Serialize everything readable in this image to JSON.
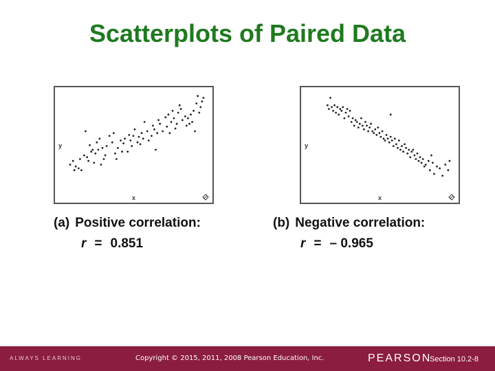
{
  "slide": {
    "title": "Scatterplots of Paired Data"
  },
  "footer": {
    "left_text": "ALWAYS LEARNING",
    "copyright": "Copyright © 2015, 2011, 2008 Pearson Education, Inc.",
    "brand": "PEARSON",
    "section": "Section 10.2-8"
  },
  "chart_data": [
    {
      "type": "scatter",
      "title": "",
      "xlabel": "x",
      "ylabel": "y",
      "xlim": [
        0,
        100
      ],
      "ylim": [
        0,
        100
      ],
      "grid": false,
      "caption_tag": "(a)",
      "caption_text": "Positive correlation:",
      "r_label": "r",
      "r_equals": "=",
      "r_value": "0.851",
      "points": [
        [
          2,
          24
        ],
        [
          4,
          28
        ],
        [
          5,
          18
        ],
        [
          6,
          22
        ],
        [
          8,
          20
        ],
        [
          9,
          30
        ],
        [
          10,
          18
        ],
        [
          12,
          34
        ],
        [
          14,
          32
        ],
        [
          16,
          45
        ],
        [
          13,
          60
        ],
        [
          18,
          40
        ],
        [
          20,
          36
        ],
        [
          21,
          48
        ],
        [
          23,
          52
        ],
        [
          26,
          30
        ],
        [
          28,
          44
        ],
        [
          30,
          55
        ],
        [
          32,
          48
        ],
        [
          33,
          58
        ],
        [
          35,
          30
        ],
        [
          36,
          42
        ],
        [
          38,
          50
        ],
        [
          40,
          47
        ],
        [
          41,
          52
        ],
        [
          43,
          38
        ],
        [
          44,
          56
        ],
        [
          45,
          50
        ],
        [
          47,
          55
        ],
        [
          48,
          62
        ],
        [
          50,
          48
        ],
        [
          51,
          54
        ],
        [
          53,
          58
        ],
        [
          54,
          52
        ],
        [
          55,
          70
        ],
        [
          57,
          60
        ],
        [
          58,
          50
        ],
        [
          60,
          55
        ],
        [
          61,
          66
        ],
        [
          62,
          62
        ],
        [
          64,
          58
        ],
        [
          65,
          72
        ],
        [
          66,
          68
        ],
        [
          68,
          60
        ],
        [
          70,
          75
        ],
        [
          71,
          65
        ],
        [
          72,
          78
        ],
        [
          74,
          70
        ],
        [
          75,
          82
        ],
        [
          76,
          74
        ],
        [
          78,
          68
        ],
        [
          79,
          80
        ],
        [
          80,
          88
        ],
        [
          81,
          84
        ],
        [
          82,
          72
        ],
        [
          84,
          76
        ],
        [
          85,
          66
        ],
        [
          86,
          74
        ],
        [
          88,
          78
        ],
        [
          90,
          82
        ],
        [
          92,
          90
        ],
        [
          94,
          80
        ],
        [
          95,
          86
        ],
        [
          96,
          92
        ],
        [
          93,
          98
        ],
        [
          97,
          96
        ],
        [
          89,
          70
        ],
        [
          91,
          60
        ],
        [
          87,
          68
        ],
        [
          73,
          58
        ],
        [
          77,
          63
        ],
        [
          63,
          40
        ],
        [
          52,
          46
        ],
        [
          46,
          44
        ],
        [
          39,
          38
        ],
        [
          34,
          36
        ],
        [
          27,
          34
        ],
        [
          25,
          42
        ],
        [
          22,
          40
        ],
        [
          19,
          26
        ],
        [
          17,
          38
        ],
        [
          24,
          24
        ],
        [
          15,
          28
        ]
      ]
    },
    {
      "type": "scatter",
      "title": "",
      "xlabel": "x",
      "ylabel": "y",
      "xlim": [
        0,
        100
      ],
      "ylim": [
        0,
        100
      ],
      "grid": false,
      "caption_tag": "(b)",
      "caption_text": "Negative correlation:",
      "r_label": "r",
      "r_equals": "=",
      "r_value": "– 0.965",
      "points": [
        [
          12,
          96
        ],
        [
          10,
          88
        ],
        [
          11,
          84
        ],
        [
          13,
          86
        ],
        [
          14,
          82
        ],
        [
          15,
          88
        ],
        [
          16,
          80
        ],
        [
          17,
          86
        ],
        [
          18,
          78
        ],
        [
          19,
          84
        ],
        [
          20,
          82
        ],
        [
          21,
          86
        ],
        [
          22,
          74
        ],
        [
          23,
          80
        ],
        [
          24,
          84
        ],
        [
          25,
          76
        ],
        [
          26,
          82
        ],
        [
          27,
          70
        ],
        [
          28,
          74
        ],
        [
          29,
          66
        ],
        [
          30,
          72
        ],
        [
          31,
          70
        ],
        [
          32,
          64
        ],
        [
          33,
          68
        ],
        [
          34,
          74
        ],
        [
          35,
          66
        ],
        [
          36,
          62
        ],
        [
          37,
          70
        ],
        [
          38,
          66
        ],
        [
          39,
          60
        ],
        [
          40,
          64
        ],
        [
          41,
          68
        ],
        [
          42,
          60
        ],
        [
          43,
          58
        ],
        [
          44,
          62
        ],
        [
          45,
          56
        ],
        [
          46,
          64
        ],
        [
          47,
          58
        ],
        [
          48,
          54
        ],
        [
          49,
          60
        ],
        [
          50,
          52
        ],
        [
          51,
          50
        ],
        [
          52,
          56
        ],
        [
          53,
          52
        ],
        [
          54,
          48
        ],
        [
          55,
          54
        ],
        [
          56,
          50
        ],
        [
          57,
          44
        ],
        [
          58,
          52
        ],
        [
          59,
          46
        ],
        [
          60,
          42
        ],
        [
          61,
          50
        ],
        [
          62,
          40
        ],
        [
          63,
          44
        ],
        [
          64,
          38
        ],
        [
          65,
          46
        ],
        [
          66,
          42
        ],
        [
          67,
          36
        ],
        [
          68,
          40
        ],
        [
          69,
          32
        ],
        [
          70,
          38
        ],
        [
          72,
          34
        ],
        [
          73,
          30
        ],
        [
          74,
          36
        ],
        [
          75,
          28
        ],
        [
          76,
          32
        ],
        [
          77,
          26
        ],
        [
          78,
          30
        ],
        [
          80,
          24
        ],
        [
          82,
          28
        ],
        [
          83,
          18
        ],
        [
          85,
          26
        ],
        [
          86,
          14
        ],
        [
          88,
          22
        ],
        [
          90,
          20
        ],
        [
          92,
          12
        ],
        [
          94,
          24
        ],
        [
          96,
          18
        ],
        [
          97,
          28
        ],
        [
          84,
          34
        ],
        [
          79,
          22
        ],
        [
          71,
          40
        ],
        [
          55,
          78
        ]
      ]
    }
  ]
}
